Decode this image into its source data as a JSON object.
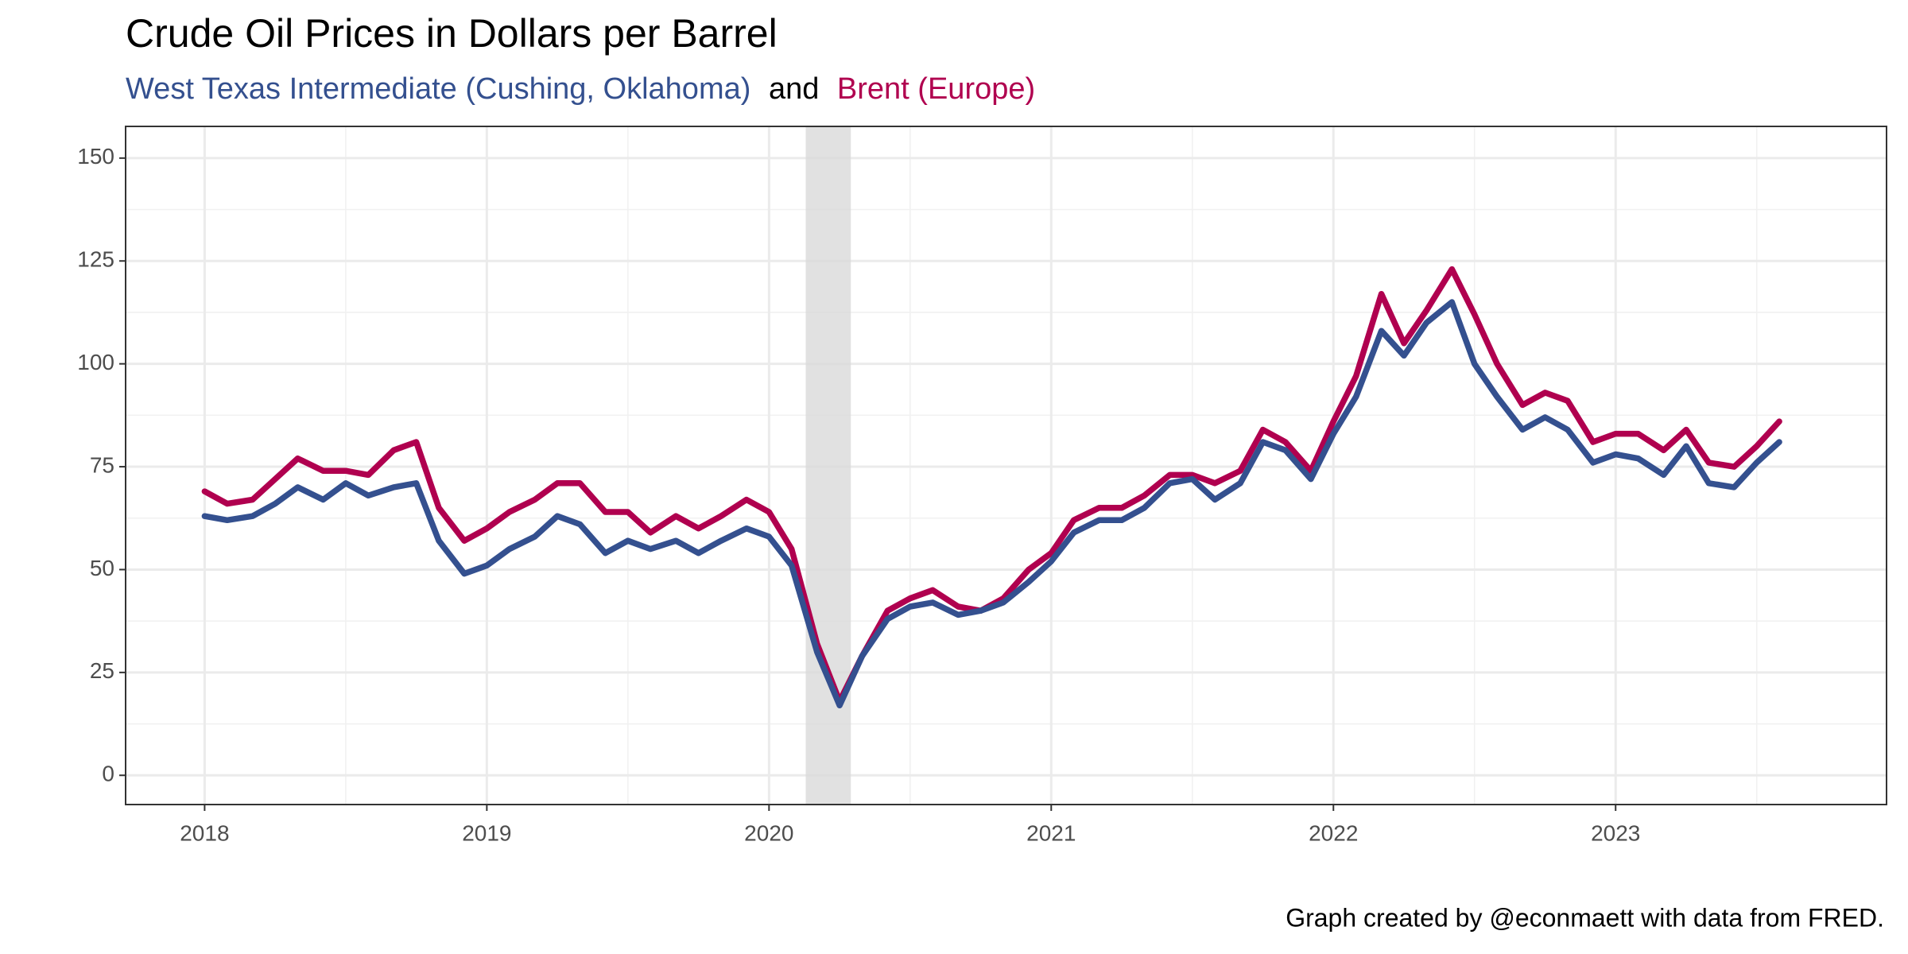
{
  "chart_data": {
    "type": "line",
    "title": "Crude Oil Prices in Dollars per Barrel",
    "subtitle_connector": "and",
    "caption": "Graph created by @econmaett with data from FRED.",
    "x": [
      2018,
      2018.08,
      2018.17,
      2018.25,
      2018.33,
      2018.42,
      2018.5,
      2018.58,
      2018.67,
      2018.75,
      2018.83,
      2018.92,
      2019,
      2019.08,
      2019.17,
      2019.25,
      2019.33,
      2019.42,
      2019.5,
      2019.58,
      2019.67,
      2019.75,
      2019.83,
      2019.92,
      2020,
      2020.08,
      2020.17,
      2020.25,
      2020.33,
      2020.42,
      2020.5,
      2020.58,
      2020.67,
      2020.75,
      2020.83,
      2020.92,
      2021,
      2021.08,
      2021.17,
      2021.25,
      2021.33,
      2021.42,
      2021.5,
      2021.58,
      2021.67,
      2021.75,
      2021.83,
      2021.92,
      2022,
      2022.08,
      2022.17,
      2022.25,
      2022.33,
      2022.42,
      2022.5,
      2022.58,
      2022.67,
      2022.75,
      2022.83,
      2022.92,
      2023,
      2023.08,
      2023.17,
      2023.25,
      2023.33,
      2023.42,
      2023.5,
      2023.58
    ],
    "series": [
      {
        "name": "Brent (Europe)",
        "color": "#b0004f",
        "values": [
          69,
          66,
          67,
          72,
          77,
          74,
          74,
          73,
          79,
          81,
          65,
          57,
          60,
          64,
          67,
          71,
          71,
          64,
          64,
          59,
          63,
          60,
          63,
          67,
          64,
          55,
          32,
          18,
          29,
          40,
          43,
          45,
          41,
          40,
          43,
          50,
          54,
          62,
          65,
          65,
          68,
          73,
          73,
          71,
          74,
          84,
          81,
          74,
          86,
          97,
          117,
          105,
          113,
          123,
          112,
          100,
          90,
          93,
          91,
          81,
          83,
          83,
          79,
          84,
          76,
          75,
          80,
          86
        ]
      },
      {
        "name": "West Texas Intermediate (Cushing, Oklahoma)",
        "color": "#34508f",
        "values": [
          63,
          62,
          63,
          66,
          70,
          67,
          71,
          68,
          70,
          71,
          57,
          49,
          51,
          55,
          58,
          63,
          61,
          54,
          57,
          55,
          57,
          54,
          57,
          60,
          58,
          51,
          30,
          17,
          29,
          38,
          41,
          42,
          39,
          40,
          42,
          47,
          52,
          59,
          62,
          62,
          65,
          71,
          72,
          67,
          71,
          81,
          79,
          72,
          83,
          92,
          108,
          102,
          110,
          115,
          100,
          92,
          84,
          87,
          84,
          76,
          78,
          77,
          73,
          80,
          71,
          70,
          76,
          81
        ]
      }
    ],
    "recession": [
      2020.13,
      2020.29
    ],
    "xlim": [
      2017.72,
      2023.96
    ],
    "xticks": [
      2018,
      2019,
      2020,
      2021,
      2022,
      2023
    ],
    "minor_xticks": [
      2018.5,
      2019.5,
      2020.5,
      2021.5,
      2022.5,
      2023.5
    ],
    "ylim": [
      -7.1,
      157.7
    ],
    "yticks": [
      0,
      25,
      50,
      75,
      100,
      125,
      150
    ],
    "minor_yticks": [
      12.5,
      37.5,
      62.5,
      87.5,
      112.5,
      137.5
    ],
    "grid": true
  }
}
